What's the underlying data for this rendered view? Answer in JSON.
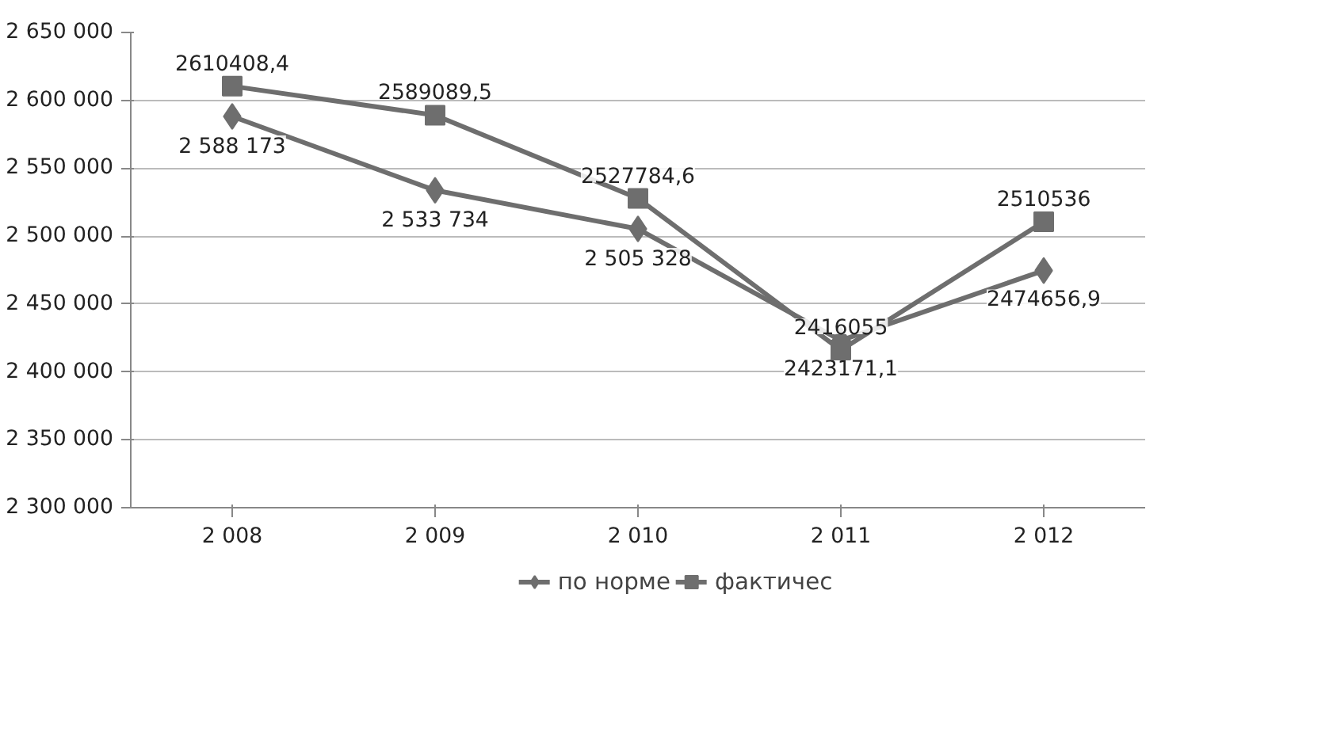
{
  "chart_data": {
    "type": "line",
    "categories": [
      "2 008",
      "2 009",
      "2 010",
      "2 011",
      "2 012"
    ],
    "ylim": [
      2300000,
      2650000
    ],
    "yticks": [
      {
        "value": 2300000,
        "label": "2 300 000"
      },
      {
        "value": 2350000,
        "label": "2 350 000"
      },
      {
        "value": 2400000,
        "label": "2 400 000"
      },
      {
        "value": 2450000,
        "label": "2 450 000"
      },
      {
        "value": 2500000,
        "label": "2 500 000"
      },
      {
        "value": 2550000,
        "label": "2 550 000"
      },
      {
        "value": 2600000,
        "label": "2 600 000"
      },
      {
        "value": 2650000,
        "label": "2 650 000"
      }
    ],
    "grid": "y",
    "legend": "bottom",
    "line_style": "solid",
    "series": [
      {
        "name": "по норме",
        "color": "#6e6e6e",
        "marker": "diamond",
        "values": [
          2588173,
          2533734,
          2505328,
          2423171.1,
          2474656.9
        ],
        "value_labels": [
          "2 588 173",
          "2 533 734",
          "2 505 328",
          "2423171,1",
          "2474656,9"
        ]
      },
      {
        "name": "фактичес",
        "color": "#6e6e6e",
        "marker": "square",
        "values": [
          2610408.4,
          2589089.5,
          2527784.6,
          2416055,
          2510536
        ],
        "value_labels": [
          "2610408,4",
          "2589089,5",
          "2527784,6",
          "2416055",
          "2510536"
        ]
      }
    ]
  }
}
